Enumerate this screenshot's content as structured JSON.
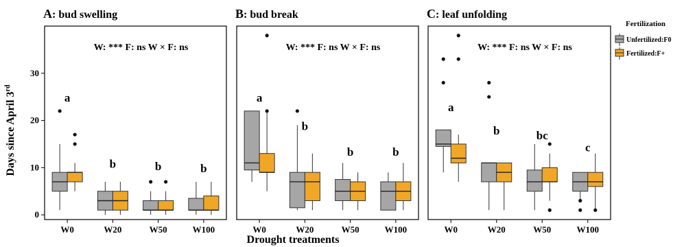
{
  "chart_data": {
    "type": "box",
    "y_label_prefix": "Days since April 3",
    "y_label_sup": "rd",
    "x_label": "Drought treatments",
    "categories": [
      "W0",
      "W20",
      "W50",
      "W100"
    ],
    "ylim": [
      -1,
      40
    ],
    "yticks": [
      0,
      10,
      20,
      30
    ],
    "legend": {
      "title": "Fertilization",
      "placement": "right",
      "entries": [
        {
          "label": "Unfertilized:F0",
          "color": "#a6a6a6"
        },
        {
          "label": "Fertilized:F+",
          "color": "#f0a727"
        }
      ]
    },
    "panels": [
      {
        "title_letter": "A",
        "title_text": ": bud swelling",
        "stats": "W: *** F: ns W × F: ns",
        "letters": [
          {
            "category": "W0",
            "text": "a",
            "y": 24
          },
          {
            "category": "W20",
            "text": "b",
            "y": 10
          },
          {
            "category": "W50",
            "text": "b",
            "y": 9.5
          },
          {
            "category": "W100",
            "text": "b",
            "y": 9
          }
        ],
        "boxes": [
          {
            "category": "W0",
            "F0": {
              "min": 1,
              "q1": 5,
              "median": 7,
              "q3": 9,
              "max": 15,
              "outliers": [
                22
              ]
            },
            "Fplus": {
              "min": 5,
              "q1": 7,
              "median": 9,
              "q3": 9,
              "max": 11,
              "outliers": [
                15,
                17
              ]
            }
          },
          {
            "category": "W20",
            "F0": {
              "min": 0,
              "q1": 1,
              "median": 3,
              "q3": 5,
              "max": 7,
              "outliers": []
            },
            "Fplus": {
              "min": 0,
              "q1": 1,
              "median": 3,
              "q3": 5,
              "max": 7,
              "outliers": []
            }
          },
          {
            "category": "W50",
            "F0": {
              "min": 0,
              "q1": 1,
              "median": 1,
              "q3": 3,
              "max": 5,
              "outliers": [
                7
              ]
            },
            "Fplus": {
              "min": 0,
              "q1": 1,
              "median": 1,
              "q3": 3,
              "max": 5,
              "outliers": [
                7
              ]
            }
          },
          {
            "category": "W100",
            "F0": {
              "min": 0,
              "q1": 1,
              "median": 1,
              "q3": 3.5,
              "max": 7,
              "outliers": []
            },
            "Fplus": {
              "min": 0,
              "q1": 1,
              "median": 1,
              "q3": 4,
              "max": 7,
              "outliers": []
            }
          }
        ]
      },
      {
        "title_letter": "B",
        "title_text": ": bud break",
        "stats": "W: *** F: ns W × F: ns",
        "letters": [
          {
            "category": "W0",
            "text": "a",
            "y": 24
          },
          {
            "category": "W20",
            "text": "b",
            "y": 18
          },
          {
            "category": "W50",
            "text": "b",
            "y": 12.5
          },
          {
            "category": "W100",
            "text": "b",
            "y": 12.5
          }
        ],
        "boxes": [
          {
            "category": "W0",
            "F0": {
              "min": 7,
              "q1": 9.5,
              "median": 11,
              "q3": 22,
              "max": 22,
              "outliers": []
            },
            "Fplus": {
              "min": 5,
              "q1": 9,
              "median": 9,
              "q3": 13,
              "max": 22,
              "outliers": [
                22,
                38
              ]
            }
          },
          {
            "category": "W20",
            "F0": {
              "min": 1,
              "q1": 1.5,
              "median": 7,
              "q3": 9,
              "max": 19,
              "outliers": [
                22
              ]
            },
            "Fplus": {
              "min": 1,
              "q1": 3,
              "median": 7,
              "q3": 9,
              "max": 13,
              "outliers": []
            }
          },
          {
            "category": "W50",
            "F0": {
              "min": 1,
              "q1": 3,
              "median": 5,
              "q3": 7.5,
              "max": 11,
              "outliers": []
            },
            "Fplus": {
              "min": 1,
              "q1": 3,
              "median": 5,
              "q3": 7,
              "max": 9,
              "outliers": []
            }
          },
          {
            "category": "W100",
            "F0": {
              "min": 1,
              "q1": 1,
              "median": 5,
              "q3": 7,
              "max": 9,
              "outliers": []
            },
            "Fplus": {
              "min": 1,
              "q1": 3,
              "median": 5,
              "q3": 7,
              "max": 11,
              "outliers": []
            }
          }
        ]
      },
      {
        "title_letter": "C",
        "title_text": ": leaf unfolding",
        "stats": "W: *** F: ns W × F: ns",
        "letters": [
          {
            "category": "W0",
            "text": "a",
            "y": 22
          },
          {
            "category": "W20",
            "text": "b",
            "y": 17
          },
          {
            "category": "W50",
            "text": "bc",
            "y": 16
          },
          {
            "category": "W100",
            "text": "c",
            "y": 13.5
          }
        ],
        "boxes": [
          {
            "category": "W0",
            "F0": {
              "min": 9,
              "q1": 14.5,
              "median": 15,
              "q3": 18,
              "max": 18,
              "outliers": [
                28,
                33
              ]
            },
            "Fplus": {
              "min": 7,
              "q1": 11,
              "median": 12,
              "q3": 15,
              "max": 17,
              "outliers": [
                33,
                38
              ]
            }
          },
          {
            "category": "W20",
            "F0": {
              "min": 1,
              "q1": 7,
              "median": 11,
              "q3": 11,
              "max": 11,
              "outliers": [
                25,
                28
              ]
            },
            "Fplus": {
              "min": 1,
              "q1": 7,
              "median": 9,
              "q3": 11,
              "max": 11,
              "outliers": []
            }
          },
          {
            "category": "W50",
            "F0": {
              "min": 1,
              "q1": 5,
              "median": 7,
              "q3": 9.5,
              "max": 15,
              "outliers": []
            },
            "Fplus": {
              "min": 3,
              "q1": 7,
              "median": 7,
              "q3": 10,
              "max": 13,
              "outliers": [
                1,
                15
              ]
            }
          },
          {
            "category": "W100",
            "F0": {
              "min": 3,
              "q1": 5,
              "median": 7,
              "q3": 9,
              "max": 9,
              "outliers": [
                1,
                3
              ]
            },
            "Fplus": {
              "min": 1,
              "q1": 6,
              "median": 7,
              "q3": 9,
              "max": 13,
              "outliers": [
                1
              ]
            }
          }
        ]
      }
    ]
  }
}
